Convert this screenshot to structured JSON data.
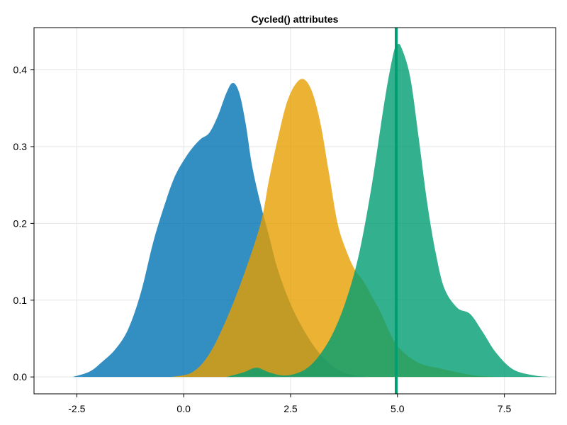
{
  "chart_data": {
    "type": "area",
    "title": "Cycled() attributes",
    "xlabel": "",
    "ylabel": "",
    "xlim": [
      -3.5,
      8.7
    ],
    "ylim": [
      -0.022,
      0.455
    ],
    "x_ticks": [
      -2.5,
      0.0,
      2.5,
      5.0,
      7.5
    ],
    "x_tick_labels": [
      "-2.5",
      "0.0",
      "2.5",
      "5.0",
      "7.5"
    ],
    "y_ticks": [
      0.0,
      0.1,
      0.2,
      0.3,
      0.4
    ],
    "y_tick_labels": [
      "0.0",
      "0.1",
      "0.2",
      "0.3",
      "0.4"
    ],
    "grid": true,
    "legend": "none",
    "series": [
      {
        "color": "#0072b2",
        "x": [
          -2.6,
          -2.2,
          -1.9,
          -1.6,
          -1.3,
          -1.0,
          -0.7,
          -0.4,
          -0.2,
          0.0,
          0.2,
          0.4,
          0.6,
          0.8,
          1.0,
          1.15,
          1.3,
          1.45,
          1.6,
          1.8,
          2.0,
          2.2,
          2.5,
          2.8,
          3.1,
          3.4,
          3.7,
          4.0,
          4.3
        ],
        "y": [
          0.0,
          0.007,
          0.02,
          0.036,
          0.062,
          0.11,
          0.178,
          0.232,
          0.262,
          0.282,
          0.298,
          0.31,
          0.318,
          0.34,
          0.37,
          0.383,
          0.37,
          0.33,
          0.275,
          0.225,
          0.183,
          0.14,
          0.095,
          0.062,
          0.036,
          0.018,
          0.007,
          0.002,
          0.0
        ]
      },
      {
        "color": "#e69f00",
        "x": [
          -0.3,
          0.2,
          0.6,
          1.0,
          1.4,
          1.8,
          2.0,
          2.2,
          2.4,
          2.6,
          2.8,
          3.0,
          3.2,
          3.4,
          3.6,
          3.8,
          4.0,
          4.2,
          4.4,
          4.6,
          4.8,
          5.0,
          5.3,
          5.6,
          6.0,
          6.4,
          6.8,
          7.3
        ],
        "y": [
          0.0,
          0.006,
          0.03,
          0.075,
          0.132,
          0.2,
          0.258,
          0.31,
          0.355,
          0.38,
          0.388,
          0.372,
          0.33,
          0.265,
          0.2,
          0.165,
          0.14,
          0.125,
          0.105,
          0.085,
          0.06,
          0.04,
          0.025,
          0.016,
          0.011,
          0.006,
          0.002,
          0.0
        ]
      },
      {
        "color": "#009e73",
        "x": [
          1.0,
          1.4,
          1.7,
          2.0,
          2.3,
          2.6,
          2.9,
          3.2,
          3.5,
          3.8,
          4.1,
          4.4,
          4.7,
          4.9,
          5.0,
          5.1,
          5.3,
          5.5,
          5.7,
          5.9,
          6.1,
          6.4,
          6.7,
          7.0,
          7.3,
          7.7,
          8.2,
          8.6
        ],
        "y": [
          0.0,
          0.006,
          0.012,
          0.006,
          0.002,
          0.004,
          0.012,
          0.03,
          0.058,
          0.1,
          0.16,
          0.25,
          0.36,
          0.42,
          0.433,
          0.428,
          0.39,
          0.31,
          0.225,
          0.16,
          0.115,
          0.09,
          0.082,
          0.058,
          0.032,
          0.01,
          0.002,
          0.0
        ]
      }
    ],
    "vline": {
      "x": 4.97,
      "color": "#009e73"
    }
  }
}
